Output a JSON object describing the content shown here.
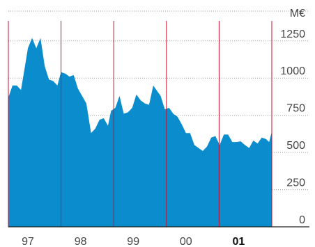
{
  "chart_data": {
    "type": "area",
    "unit_label": "M€",
    "y_ticks": [
      0,
      250,
      500,
      750,
      1000,
      1250
    ],
    "ylim": [
      0,
      1450
    ],
    "x_tick_labels": [
      {
        "label": "97",
        "x": 1997.0,
        "bold": false
      },
      {
        "label": "98",
        "x": 1998.0,
        "bold": false
      },
      {
        "label": "99",
        "x": 1999.0,
        "bold": false
      },
      {
        "label": "00",
        "x": 2000.0,
        "bold": false
      },
      {
        "label": "01",
        "x": 2001.0,
        "bold": true
      }
    ],
    "xlim": [
      1996.63,
      2001.63
    ],
    "year_markers": [
      1996.63,
      1997.63,
      1998.63,
      1999.63,
      2000.63,
      2001.63
    ],
    "grid": "horizontal dotted",
    "colors": {
      "area": "#0a8ccd",
      "marker": "#c8102e",
      "grid": "#9a9a9a",
      "axis": "#222222"
    },
    "series": [
      {
        "x": [
          1996.63,
          1996.71,
          1996.79,
          1996.87,
          1996.95,
          1997.0,
          1997.08,
          1997.16,
          1997.24,
          1997.32,
          1997.4,
          1997.48,
          1997.56,
          1997.63,
          1997.71,
          1997.79,
          1997.87,
          1997.95,
          1998.03,
          1998.11,
          1998.2,
          1998.28,
          1998.36,
          1998.44,
          1998.52,
          1998.58,
          1998.66,
          1998.74,
          1998.82,
          1998.9,
          1998.98,
          1999.06,
          1999.14,
          1999.22,
          1999.3,
          1999.38,
          1999.46,
          1999.52,
          1999.6,
          1999.68,
          1999.76,
          1999.84,
          1999.92,
          2000.0,
          2000.08,
          2000.16,
          2000.24,
          2000.32,
          2000.4,
          2000.48,
          2000.56,
          2000.64,
          2000.72,
          2000.8,
          2000.88,
          2000.96,
          2001.04,
          2001.12,
          2001.2,
          2001.28,
          2001.36,
          2001.44,
          2001.52,
          2001.58,
          2001.63
        ],
        "values": [
          870,
          950,
          950,
          920,
          1090,
          1200,
          1270,
          1200,
          1270,
          1080,
          990,
          980,
          950,
          1040,
          1030,
          1010,
          1020,
          930,
          880,
          830,
          630,
          660,
          720,
          730,
          680,
          780,
          800,
          880,
          760,
          770,
          800,
          890,
          850,
          830,
          820,
          950,
          910,
          880,
          790,
          800,
          760,
          740,
          690,
          630,
          630,
          550,
          530,
          510,
          540,
          600,
          610,
          550,
          620,
          620,
          570,
          570,
          575,
          550,
          530,
          580,
          560,
          600,
          590,
          570,
          640
        ]
      }
    ]
  }
}
